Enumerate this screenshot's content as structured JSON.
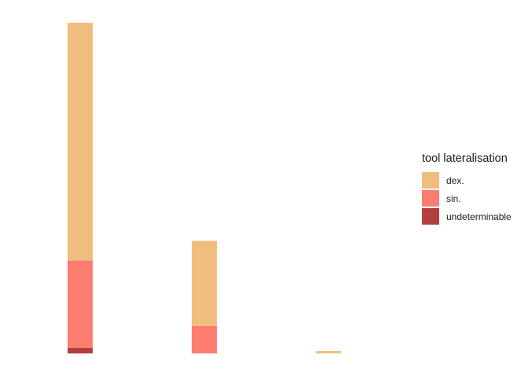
{
  "chart_data": {
    "type": "bar",
    "stacked": true,
    "categories": [
      "",
      "",
      ""
    ],
    "legend": {
      "title": "tool lateralisation",
      "position": "right"
    },
    "series": [
      {
        "name": "undeterminable",
        "color": "#b13f40",
        "values": [
          7,
          0,
          0
        ]
      },
      {
        "name": "sin.",
        "color": "#fc7c70",
        "values": [
          111,
          35,
          0
        ]
      },
      {
        "name": "dex.",
        "color": "#f1bd7e",
        "values": [
          302,
          108,
          3
        ]
      }
    ],
    "ylim": [
      0,
      420
    ],
    "grid": false
  }
}
